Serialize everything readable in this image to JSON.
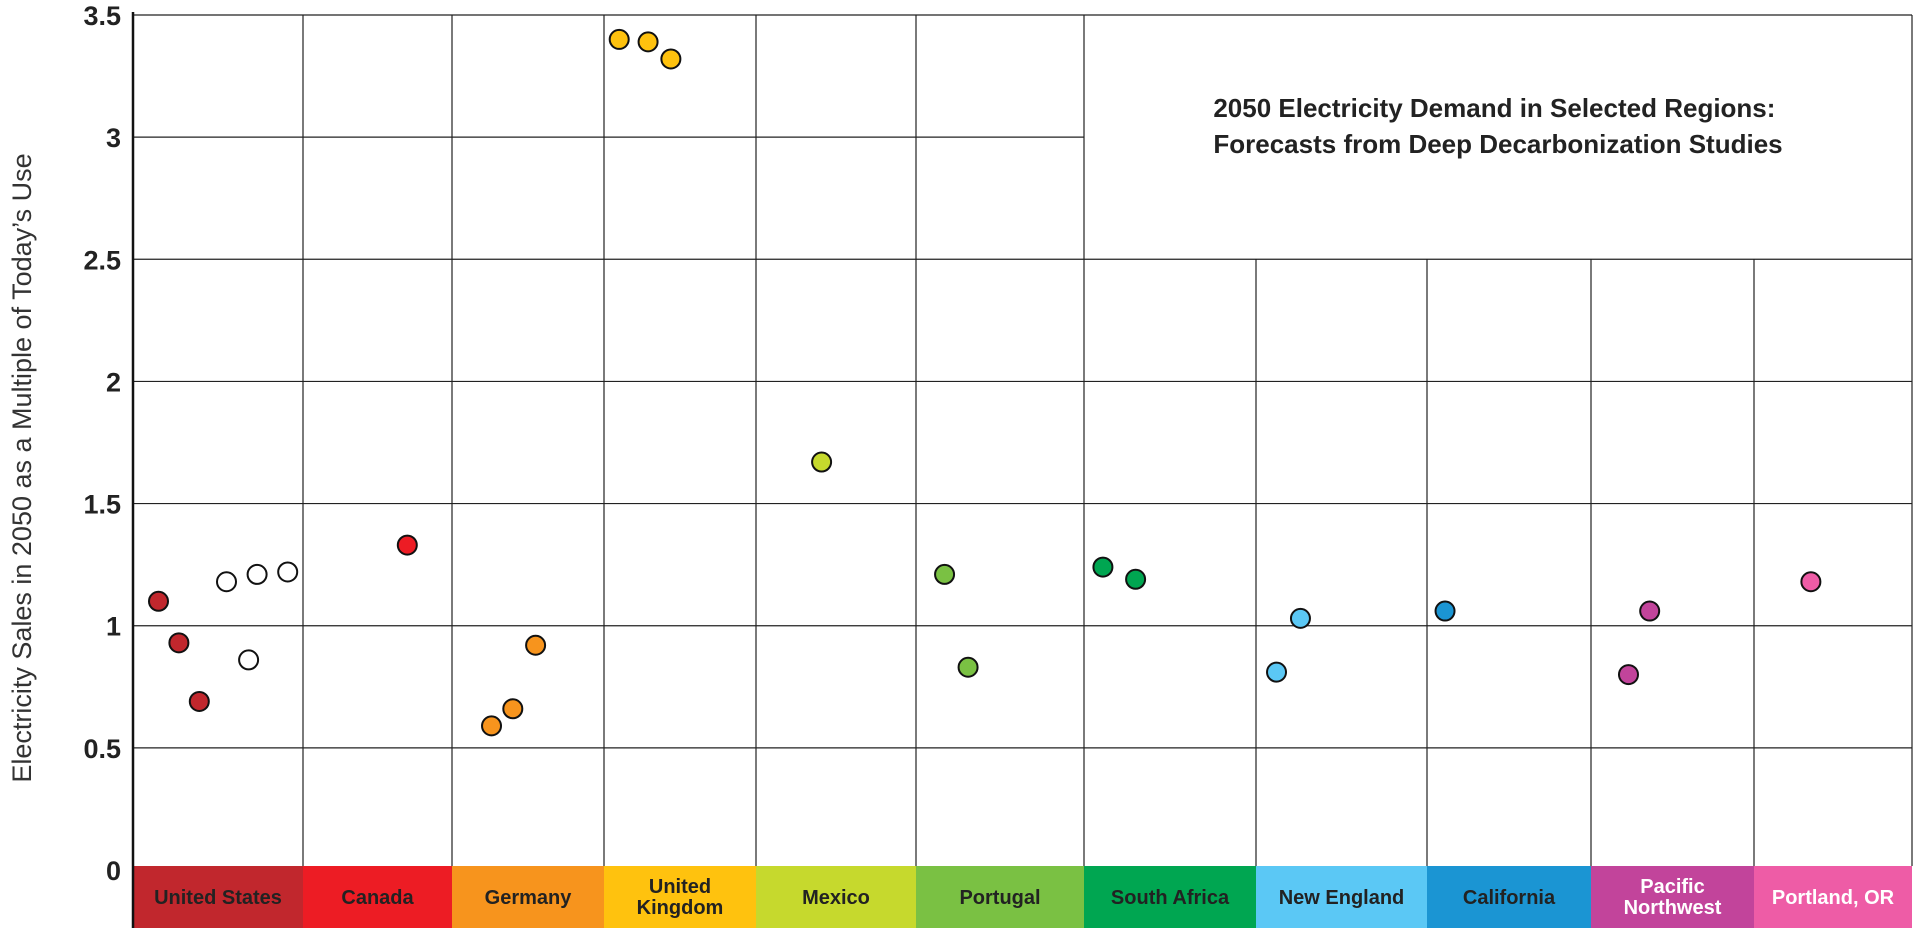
{
  "chart_data": {
    "type": "scatter",
    "title": [
      "2050 Electricity Demand in Selected Regions:",
      "Forecasts from Deep Decarbonization Studies"
    ],
    "ylabel": "Electricity Sales in 2050 as a Multiple of Today’s Use",
    "ylim": [
      0,
      3.5
    ],
    "yticks": [
      0,
      0.5,
      1,
      1.5,
      2,
      2.5,
      3,
      3.5
    ],
    "ytick_labels": [
      "0",
      "0.5",
      "1",
      "1.5",
      "2",
      "2.5",
      "3",
      "3.5"
    ],
    "grid": true,
    "regions": [
      {
        "name": "United States",
        "label_lines": [
          "United States"
        ],
        "color": "#C1272D",
        "text_color": "#222222",
        "points": [
          {
            "y": 1.1,
            "filled": true
          },
          {
            "y": 0.93,
            "filled": true
          },
          {
            "y": 0.69,
            "filled": true
          },
          {
            "y": 1.18,
            "filled": false
          },
          {
            "y": 1.21,
            "filled": false
          },
          {
            "y": 0.86,
            "filled": false
          },
          {
            "y": 1.22,
            "filled": false
          }
        ]
      },
      {
        "name": "Canada",
        "label_lines": [
          "Canada"
        ],
        "color": "#ED1C24",
        "text_color": "#222222",
        "points": [
          {
            "y": 1.33,
            "filled": true
          }
        ]
      },
      {
        "name": "Germany",
        "label_lines": [
          "Germany"
        ],
        "color": "#F7941D",
        "text_color": "#222222",
        "points": [
          {
            "y": 0.59,
            "filled": true
          },
          {
            "y": 0.66,
            "filled": true
          },
          {
            "y": 0.92,
            "filled": true
          }
        ]
      },
      {
        "name": "United Kingdom",
        "label_lines": [
          "United",
          "Kingdom"
        ],
        "color": "#FFC20E",
        "text_color": "#222222",
        "points": [
          {
            "y": 3.4,
            "filled": true
          },
          {
            "y": 3.39,
            "filled": true
          },
          {
            "y": 3.32,
            "filled": true
          }
        ]
      },
      {
        "name": "Mexico",
        "label_lines": [
          "Mexico"
        ],
        "color": "#C6D92D",
        "text_color": "#222222",
        "points": [
          {
            "y": 1.67,
            "filled": true
          }
        ]
      },
      {
        "name": "Portugal",
        "label_lines": [
          "Portugal"
        ],
        "color": "#7AC143",
        "text_color": "#222222",
        "points": [
          {
            "y": 1.21,
            "filled": true
          },
          {
            "y": 0.83,
            "filled": true
          }
        ]
      },
      {
        "name": "South Africa",
        "label_lines": [
          "South Africa"
        ],
        "color": "#00A651",
        "text_color": "#222222",
        "points": [
          {
            "y": 1.24,
            "filled": true
          },
          {
            "y": 1.19,
            "filled": true
          }
        ]
      },
      {
        "name": "New England",
        "label_lines": [
          "New England"
        ],
        "color": "#5BC8F5",
        "text_color": "#222222",
        "points": [
          {
            "y": 0.81,
            "filled": true
          },
          {
            "y": 1.03,
            "filled": true
          }
        ]
      },
      {
        "name": "California",
        "label_lines": [
          "California"
        ],
        "color": "#1B95D3",
        "text_color": "#222222",
        "points": [
          {
            "y": 1.06,
            "filled": true
          }
        ]
      },
      {
        "name": "Pacific Northwest",
        "label_lines": [
          "Pacific",
          "Northwest"
        ],
        "color": "#C2449B",
        "text_color": "#FFFFFF",
        "points": [
          {
            "y": 0.8,
            "filled": true
          },
          {
            "y": 1.06,
            "filled": true
          }
        ]
      },
      {
        "name": "Portland, OR",
        "label_lines": [
          "Portland, OR"
        ],
        "color": "#EE5CA6",
        "text_color": "#FFFFFF",
        "points": [
          {
            "y": 1.18,
            "filled": true
          }
        ]
      }
    ]
  }
}
